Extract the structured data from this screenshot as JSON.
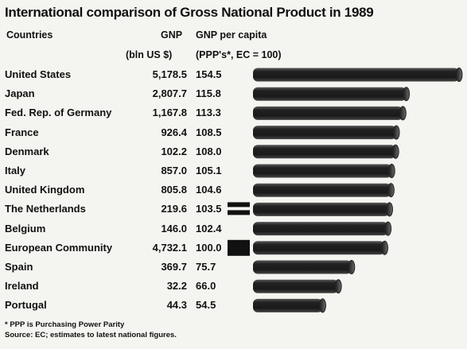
{
  "chart_data": {
    "type": "bar",
    "title": "International comparison of Gross National Product in 1989",
    "columns": {
      "countries": "Countries",
      "gnp": "GNP",
      "gnp_unit": "(bln US $)",
      "per_capita": "GNP per capita",
      "per_capita_unit": "(PPP's*, EC = 100)"
    },
    "categories": [
      "United States",
      "Japan",
      "Fed. Rep. of Germany",
      "France",
      "Denmark",
      "Italy",
      "United Kingdom",
      "The Netherlands",
      "Belgium",
      "European Community",
      "Spain",
      "Ireland",
      "Portugal"
    ],
    "gnp_labels": [
      "5,178.5",
      "2,807.7",
      "1,167.8",
      "926.4",
      "102.2",
      "857.0",
      "805.8",
      "219.6",
      "146.0",
      "4,732.1",
      "369.7",
      "32.2",
      "44.3"
    ],
    "per_capita_labels": [
      "154.5",
      "115.8",
      "113.3",
      "108.5",
      "108.0",
      "105.1",
      "104.6",
      "103.5",
      "102.4",
      "100.0",
      "75.7",
      "66.0",
      "54.5"
    ],
    "series": [
      {
        "values": [
          154.5,
          115.8,
          113.3,
          108.5,
          108.0,
          105.1,
          104.6,
          103.5,
          102.4,
          100.0,
          75.7,
          66.0,
          54.5
        ]
      }
    ],
    "xlim": [
      0,
      154.5
    ],
    "markers": {
      "The Netherlands": "equals-sign",
      "European Community": "solid-square"
    },
    "grid": false,
    "colors": {
      "bar": "#2a2a2a",
      "background": "#f4f4f1"
    }
  },
  "footnotes": [
    "* PPP is Purchasing Power Parity",
    "Source: EC; estimates to latest national figures."
  ]
}
